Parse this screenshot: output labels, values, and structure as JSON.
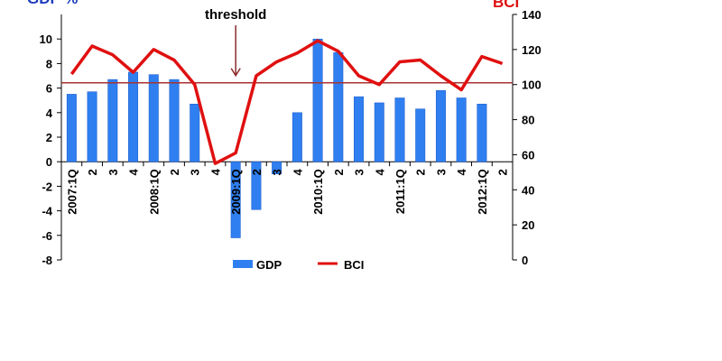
{
  "chart_data": {
    "type": "bar",
    "ylabel": "GDP %",
    "ylabel_right": "BCI",
    "categories": [
      "2007:1Q",
      "2",
      "3",
      "4",
      "2008:1Q",
      "2",
      "3",
      "4",
      "2009:1Q",
      "2",
      "3",
      "4",
      "2010:1Q",
      "2",
      "3",
      "4",
      "2011:1Q",
      "2",
      "3",
      "4",
      "2012:1Q",
      "2"
    ],
    "ylim": [
      -8,
      12
    ],
    "yticks": [
      -8,
      -6,
      -4,
      -2,
      0,
      2,
      4,
      6,
      8,
      10
    ],
    "ylim_right": [
      0,
      140
    ],
    "yticks_right": [
      0,
      20,
      40,
      60,
      80,
      100,
      120,
      140
    ],
    "series": [
      {
        "name": "GDP",
        "axis": "left",
        "kind": "bar",
        "color": "#2f7ff0",
        "values": [
          5.5,
          5.7,
          6.7,
          7.3,
          7.1,
          6.7,
          4.7,
          null,
          -6.2,
          -3.9,
          -1.0,
          4.0,
          10.0,
          8.9,
          5.3,
          4.8,
          5.2,
          4.3,
          5.8,
          5.2,
          4.7,
          null
        ]
      },
      {
        "name": "BCI",
        "axis": "right",
        "kind": "line",
        "color": "#e01010",
        "values": [
          106,
          122,
          117,
          107,
          120,
          114,
          100,
          55,
          61,
          105,
          113,
          118,
          125,
          119,
          105,
          100,
          113,
          114,
          105,
          97,
          116,
          112
        ]
      }
    ],
    "reference_line": {
      "axis": "right",
      "value": 101,
      "color": "#a83232"
    },
    "annotation": {
      "text": "threshold",
      "x_category_index": 8
    },
    "legend": {
      "position": "bottom"
    }
  }
}
